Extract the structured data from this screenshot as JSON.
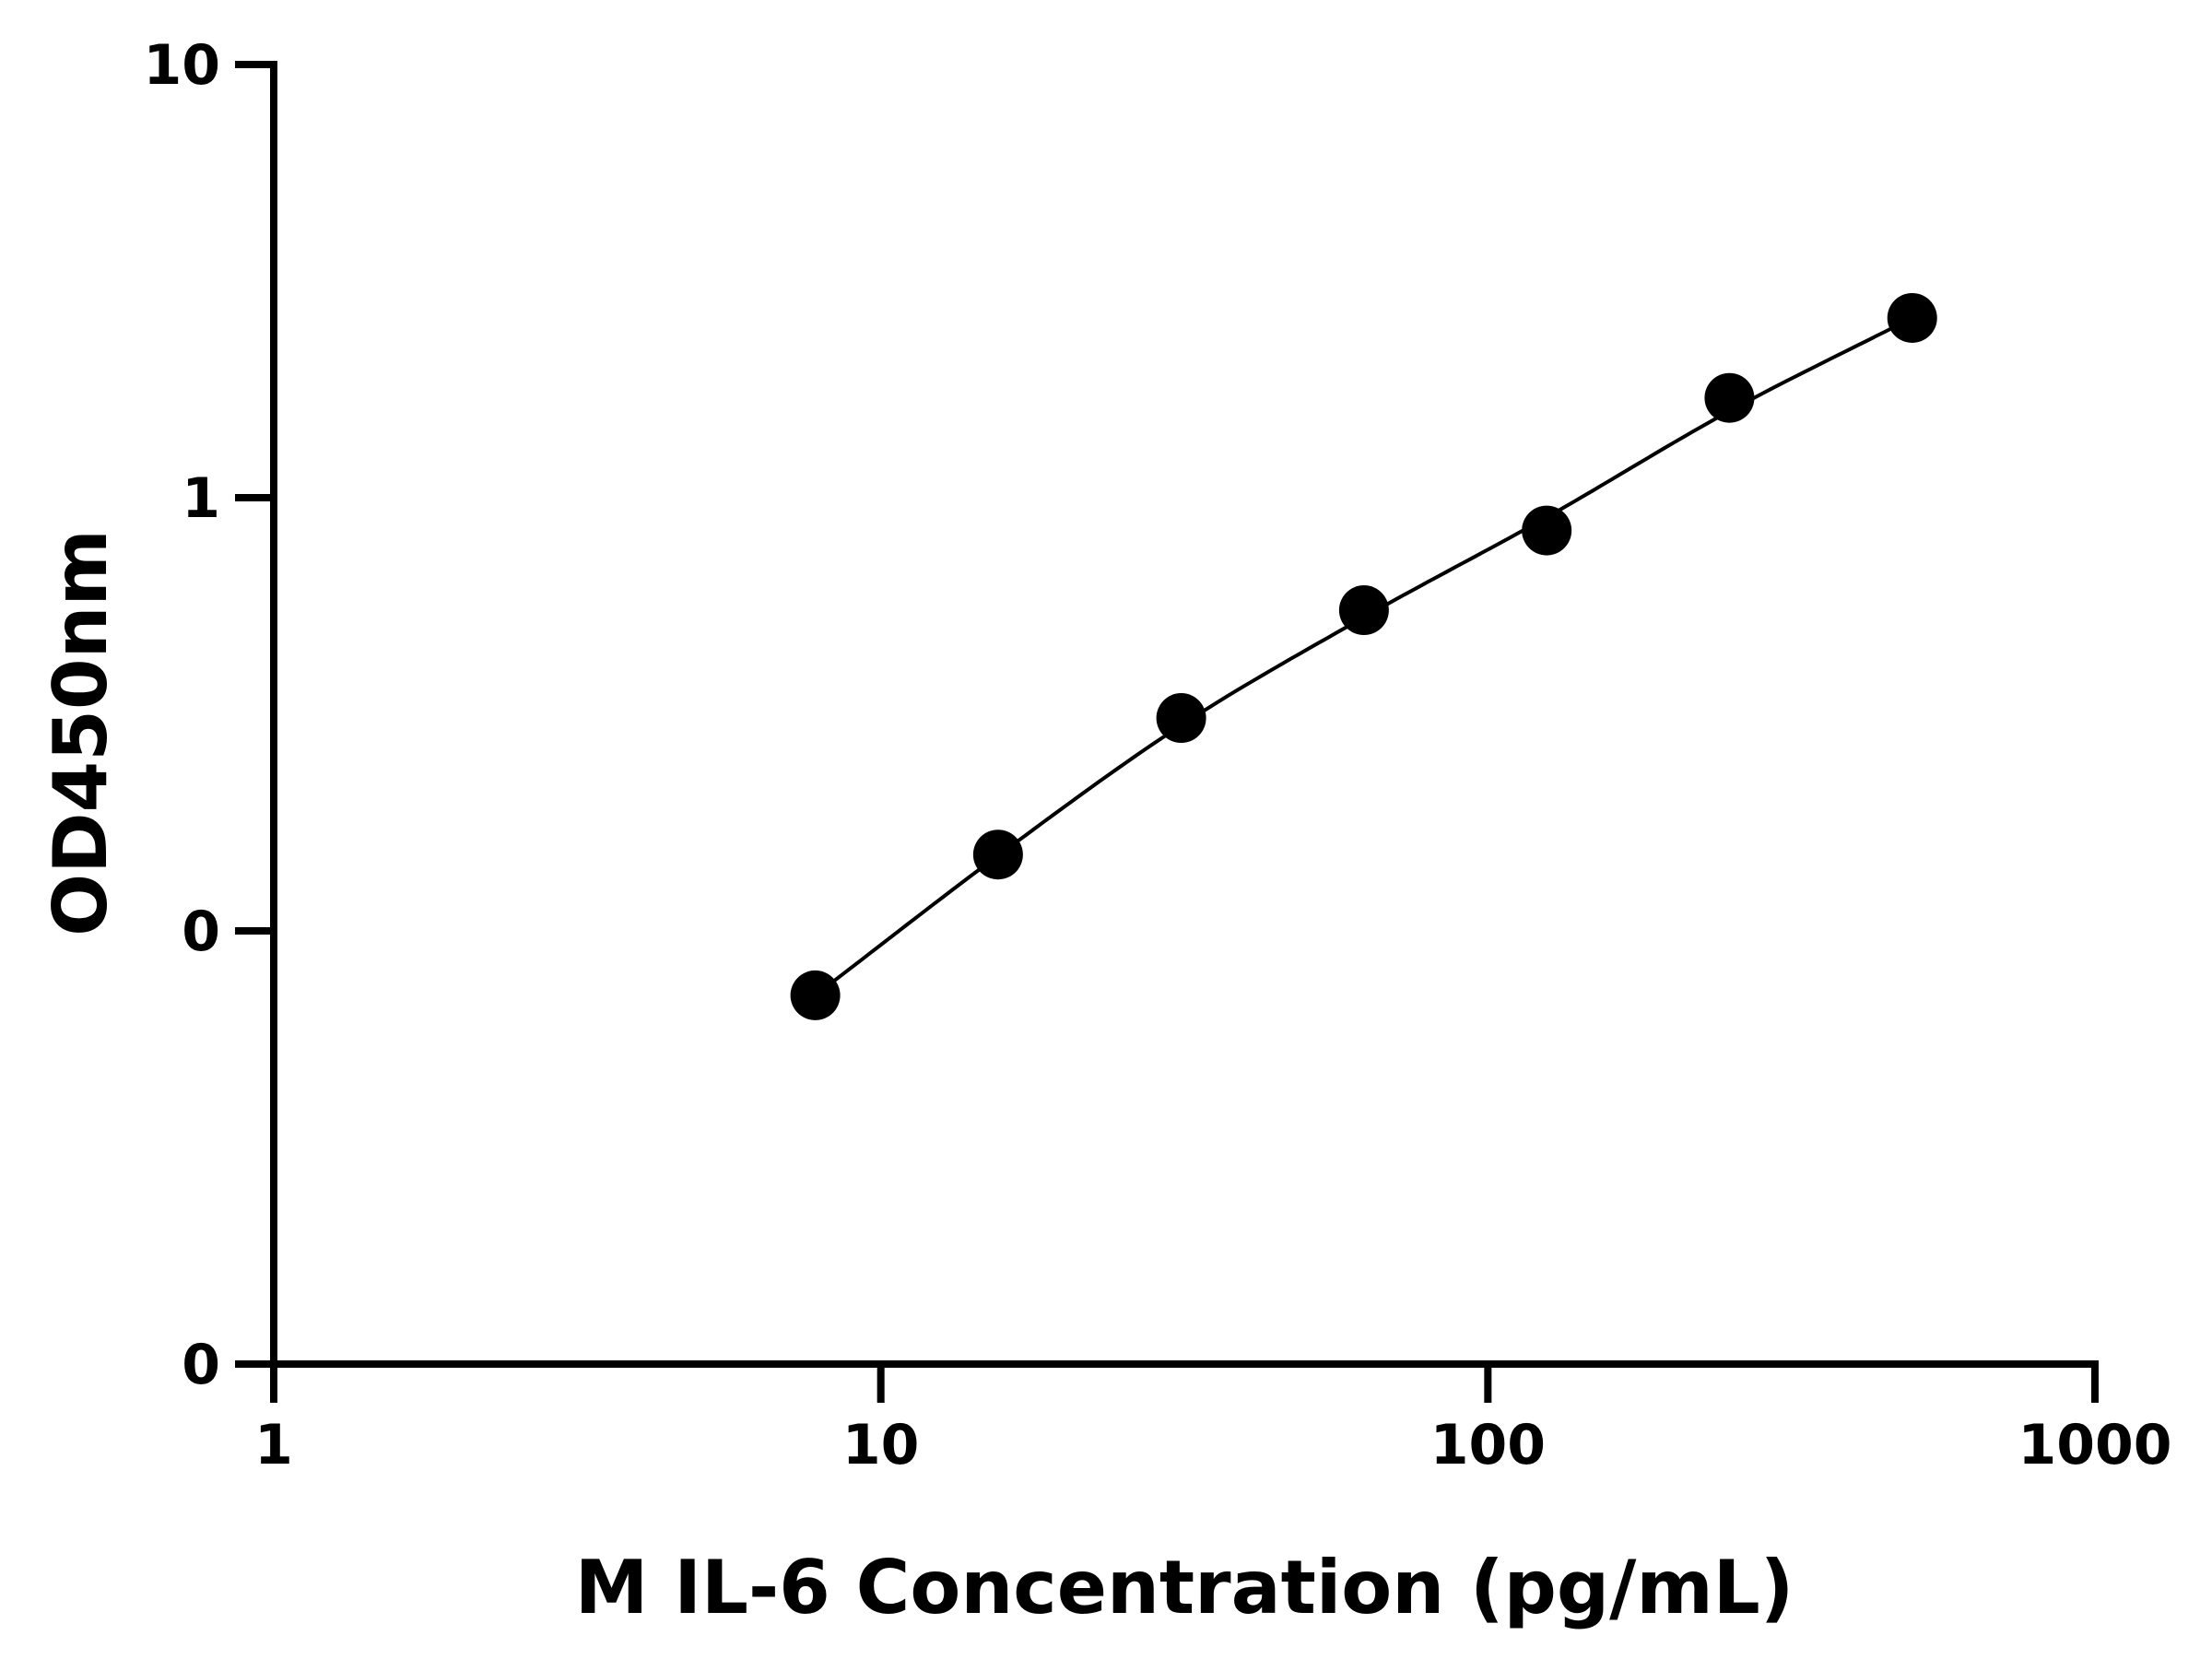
{
  "chart_data": {
    "type": "scatter",
    "title": "",
    "xlabel": "M IL-6 Concentration (pg/mL)",
    "ylabel": "OD450nm",
    "x_scale": "log",
    "xlim": [
      1,
      1000
    ],
    "x_ticks": [
      {
        "value": 1,
        "label": "1"
      },
      {
        "value": 10,
        "label": "10"
      },
      {
        "value": 100,
        "label": "100"
      },
      {
        "value": 1000,
        "label": "1000"
      }
    ],
    "y_ticks": [
      {
        "value": 0.01,
        "label": "0"
      },
      {
        "value": 0.1,
        "label": "0"
      },
      {
        "value": 1,
        "label": "1"
      },
      {
        "value": 10,
        "label": "10"
      }
    ],
    "y_scale": "log",
    "ylim": [
      0.01,
      10
    ],
    "grid": false,
    "legend": "none",
    "series": [
      {
        "x": [
          7.8,
          15.6,
          31.25,
          62.5,
          125,
          250,
          500
        ],
        "y": [
          0.071,
          0.15,
          0.31,
          0.55,
          0.84,
          1.7,
          2.6
        ],
        "marker_color": "#000000",
        "fit_line": true
      }
    ]
  }
}
